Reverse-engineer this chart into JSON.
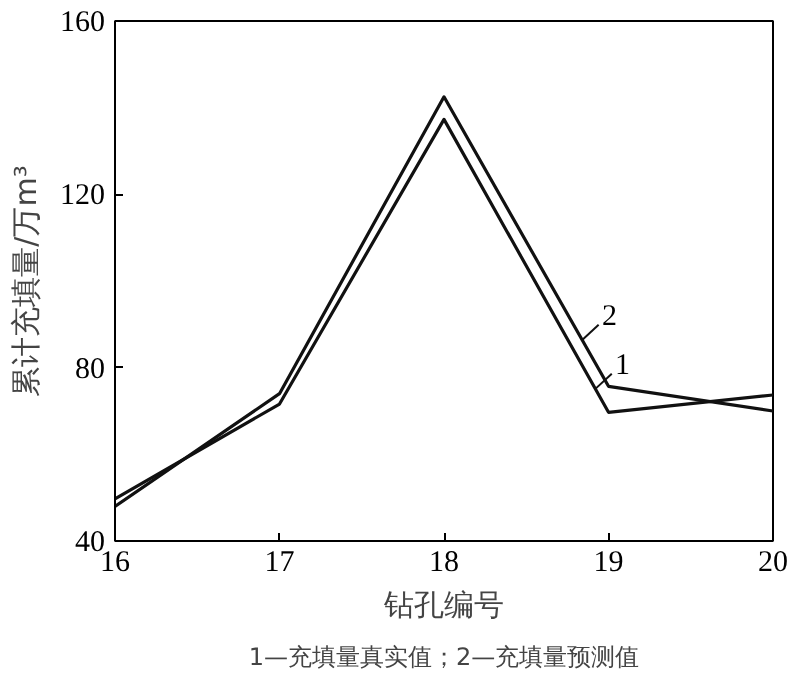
{
  "chart_data": {
    "type": "line",
    "xlabel": "钻孔编号",
    "ylabel": "累计充填量/万m³",
    "x": [
      16,
      17,
      18,
      19,
      20
    ],
    "series": [
      {
        "name": "1",
        "color": "#111111",
        "values": [
          49.7,
          71.6,
          137.3,
          69.7,
          73.7
        ]
      },
      {
        "name": "2",
        "color": "#111111",
        "values": [
          48,
          74,
          142.5,
          75.7,
          70
        ]
      }
    ],
    "xlim": [
      16,
      20
    ],
    "xticks": [
      16,
      17,
      18,
      19,
      20
    ],
    "ylim": [
      40,
      160
    ],
    "yticks": [
      40,
      80,
      120,
      160
    ],
    "grid": false,
    "legend": "right",
    "marker": "none",
    "line_style": "solid",
    "annotations": [
      "1—充填量真实值；2—充填量预测值"
    ]
  }
}
